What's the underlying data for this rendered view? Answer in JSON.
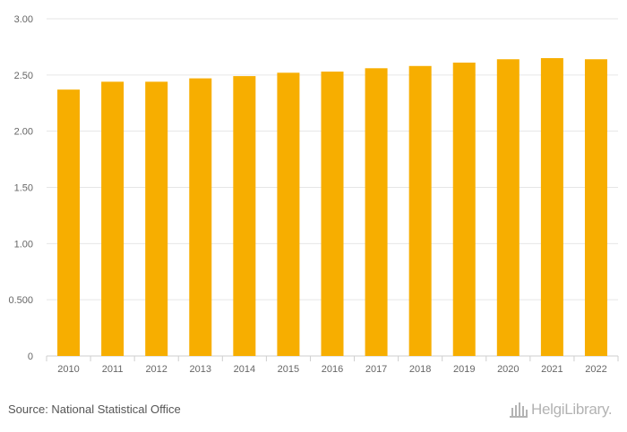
{
  "chart_data": {
    "type": "bar",
    "categories": [
      "2010",
      "2011",
      "2012",
      "2013",
      "2014",
      "2015",
      "2016",
      "2017",
      "2018",
      "2019",
      "2020",
      "2021",
      "2022"
    ],
    "values": [
      2.37,
      2.44,
      2.44,
      2.47,
      2.49,
      2.52,
      2.53,
      2.56,
      2.58,
      2.61,
      2.64,
      2.65,
      2.64
    ],
    "ylim": [
      0,
      3
    ],
    "yticks": [
      0,
      0.5,
      1,
      1.5,
      2,
      2.5,
      3
    ],
    "ytick_labels": [
      "0",
      "0.500",
      "1.00",
      "1.50",
      "2.00",
      "2.50",
      "3.00"
    ],
    "bar_color": "#f7ae00",
    "grid": true,
    "title": "",
    "xlabel": "",
    "ylabel": ""
  },
  "footer": {
    "source": "Source: National Statistical Office",
    "logo_text": "HelgiLibrary.",
    "logo_icon": "library-building-icon"
  }
}
